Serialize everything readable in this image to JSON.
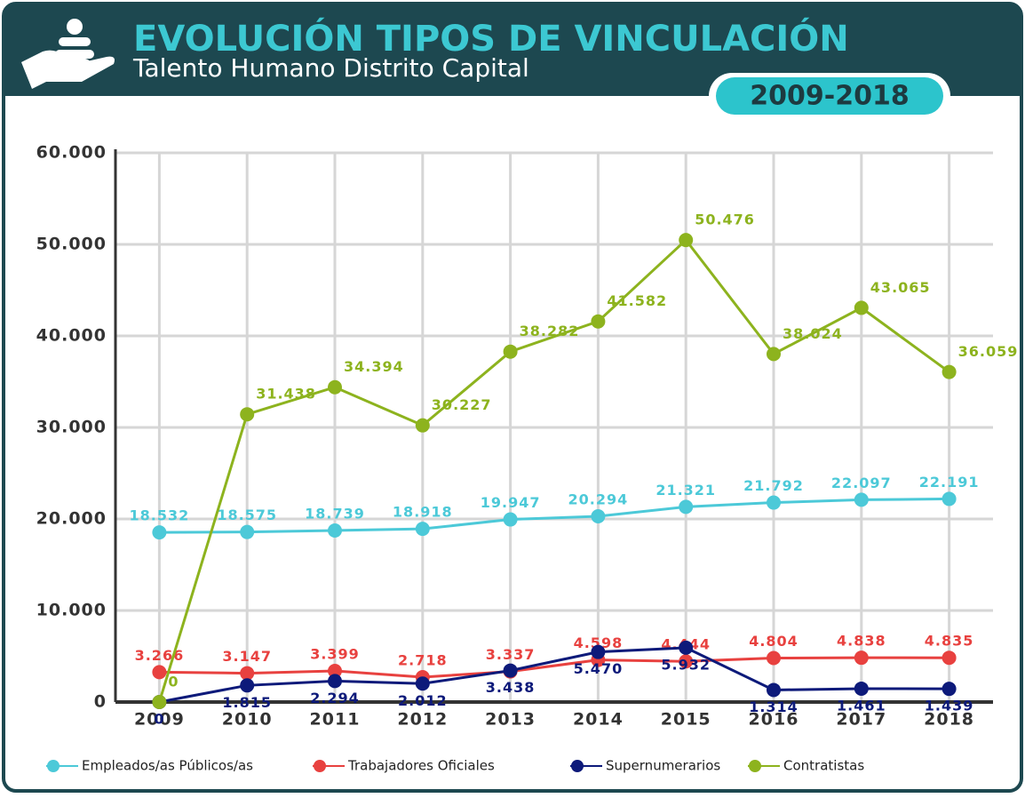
{
  "chart_data": {
    "type": "line",
    "title": "EVOLUCIÓN TIPOS DE VINCULACIÓN",
    "subtitle": "Talento Humano Distrito Capital",
    "period": "2009-2018",
    "categories": [
      "2009",
      "2010",
      "2011",
      "2012",
      "2013",
      "2014",
      "2015",
      "2016",
      "2017",
      "2018"
    ],
    "ylim": [
      0,
      60000
    ],
    "yticks": [
      0,
      {
        "value": 10000,
        "label": "10.000"
      },
      {
        "value": 20000,
        "label": "20.000"
      },
      {
        "value": 30000,
        "label": "30.000"
      },
      {
        "value": 40000,
        "label": "40.000"
      },
      {
        "value": 50000,
        "label": "50.000"
      },
      {
        "value": 60000,
        "label": "60.000"
      }
    ],
    "grid": true,
    "legend": "bottom",
    "series": [
      {
        "name": "Empleados/as Públicos/as",
        "color": "#4cc9d8",
        "values": [
          18532,
          18575,
          18739,
          18918,
          19947,
          20294,
          21321,
          21792,
          22097,
          22191
        ],
        "value_labels": [
          "18.532",
          "18.575",
          "18.739",
          "18.918",
          "19.947",
          "20.294",
          "21.321",
          "21.792",
          "22.097",
          "22.191"
        ]
      },
      {
        "name": "Trabajadores Oficiales",
        "color": "#e8413f",
        "values": [
          3266,
          3147,
          3399,
          2718,
          3337,
          4598,
          4444,
          4804,
          4838,
          4835
        ],
        "value_labels": [
          "3.266",
          "3.147",
          "3.399",
          "2.718",
          "3.337",
          "4.598",
          "4.444",
          "4.804",
          "4.838",
          "4.835"
        ]
      },
      {
        "name": "Supernumerarios",
        "color": "#0d1a7a",
        "values": [
          0,
          1815,
          2294,
          2012,
          3438,
          5470,
          5932,
          1314,
          1461,
          1439
        ],
        "value_labels": [
          "0",
          "1.815",
          "2.294",
          "2.012",
          "3.438",
          "5.470",
          "5.932",
          "1.314",
          "1.461",
          "1.439"
        ]
      },
      {
        "name": "Contratistas",
        "color": "#8db31e",
        "values": [
          0,
          31438,
          34394,
          30227,
          38282,
          41582,
          50476,
          38024,
          43065,
          36059
        ],
        "value_labels": [
          "0",
          "31.438",
          "34.394",
          "30.227",
          "38.282",
          "41.582",
          "50.476",
          "38.024",
          "43.065",
          "36.059"
        ]
      }
    ]
  }
}
